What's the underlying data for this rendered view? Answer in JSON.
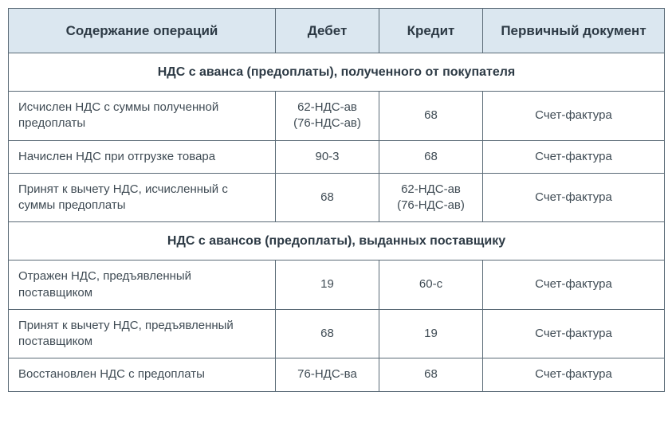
{
  "columns": {
    "operation": "Содержание операций",
    "debit": "Дебет",
    "credit": "Кредит",
    "document": "Первичный документ"
  },
  "sections": [
    {
      "title": "НДС с аванса (предоплаты), полученного от покупателя",
      "rows": [
        {
          "operation": "Исчислен НДС с суммы полученной предоплаты",
          "debit": "62-НДС-ав\n(76-НДС-ав)",
          "credit": "68",
          "document": "Счет-фактура"
        },
        {
          "operation": "Начислен НДС при отгрузке товара",
          "debit": "90-3",
          "credit": "68",
          "document": "Счет-фактура"
        },
        {
          "operation": "Принят к вычету НДС, исчисленный с суммы предоплаты",
          "debit": "68",
          "credit": "62-НДС-ав\n(76-НДС-ав)",
          "document": "Счет-фактура"
        }
      ]
    },
    {
      "title": "НДС с авансов (предоплаты), выданных поставщику",
      "rows": [
        {
          "operation": "Отражен НДС, предъявленный поставщиком",
          "debit": "19",
          "credit": "60-с",
          "document": "Счет-фактура"
        },
        {
          "operation": "Принят к вычету НДС, предъявленный поставщиком",
          "debit": "68",
          "credit": "19",
          "document": "Счет-фактура"
        },
        {
          "operation": "Восстановлен НДС с предоплаты",
          "debit": "76-НДС-ва",
          "credit": "68",
          "document": "Счет-фактура"
        }
      ]
    }
  ]
}
